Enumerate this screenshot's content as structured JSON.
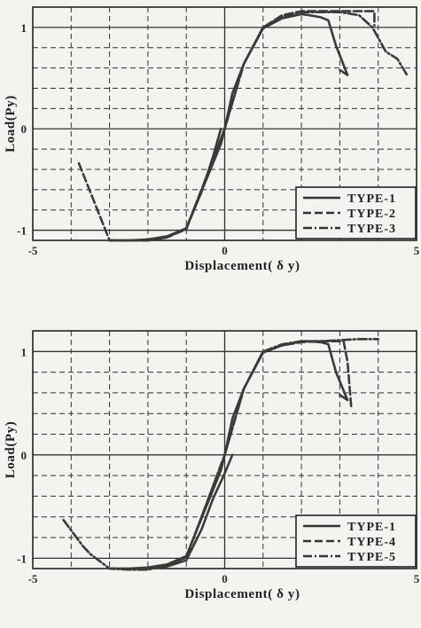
{
  "charts": [
    {
      "type": "line",
      "xlabel": "Displacement( δ y)",
      "ylabel": "Load(Py)",
      "xlim": [
        -5,
        5
      ],
      "ylim": [
        -1.1,
        1.2
      ],
      "xticks": [
        "-5",
        "0",
        "5"
      ],
      "yticks": [
        "1",
        "0",
        "-1"
      ],
      "ytick_values": [
        1,
        0,
        -1
      ],
      "grid": true,
      "legend_position": "bottom-right",
      "series": [
        {
          "name": "TYPE-1",
          "dash": "solid",
          "x": [
            -0.1,
            -0.3,
            -0.6,
            -1.0,
            -1.5,
            -2.0,
            -2.5,
            -3.0,
            -2.5,
            -2.0,
            -1.5,
            -1.0,
            -0.5,
            -0.1,
            0.0,
            0.2,
            0.5,
            1.0,
            1.5,
            2.0,
            2.2,
            2.5,
            2.7,
            2.9,
            3.2,
            3.0
          ],
          "y": [
            0.0,
            -0.27,
            -0.62,
            -0.98,
            -1.06,
            -1.1,
            -1.1,
            -1.1,
            -1.1,
            -1.09,
            -1.06,
            -0.98,
            -0.52,
            -0.15,
            0.0,
            0.35,
            0.64,
            0.99,
            1.09,
            1.13,
            1.12,
            1.1,
            1.07,
            0.82,
            0.53,
            0.58
          ]
        },
        {
          "name": "TYPE-2",
          "dash": "dashed",
          "x": [
            -3.8,
            -3.0,
            -2.5,
            -2.0,
            -1.5,
            -1.0,
            -0.5,
            0.0,
            0.5,
            1.0,
            1.5,
            2.0,
            2.5,
            3.0,
            3.5,
            3.9,
            3.9
          ],
          "y": [
            -0.34,
            -1.1,
            -1.1,
            -1.1,
            -1.07,
            -0.99,
            -0.5,
            0.0,
            0.64,
            1.0,
            1.12,
            1.16,
            1.16,
            1.16,
            1.16,
            1.16,
            1.02
          ]
        },
        {
          "name": "TYPE-3",
          "dash": "dashdot",
          "x": [
            -3.0,
            -2.5,
            -2.0,
            -1.5,
            -1.0,
            -0.5,
            0.0,
            0.5,
            1.0,
            1.5,
            2.0,
            2.5,
            3.0,
            3.5,
            3.85,
            4.2,
            4.5,
            4.75
          ],
          "y": [
            -1.1,
            -1.1,
            -1.1,
            -1.07,
            -0.98,
            -0.5,
            0.0,
            0.64,
            1.0,
            1.11,
            1.15,
            1.15,
            1.15,
            1.12,
            1.0,
            0.76,
            0.69,
            0.53
          ]
        }
      ]
    },
    {
      "type": "line",
      "xlabel": "Displacement( δ y)",
      "ylabel": "Load(Py)",
      "xlim": [
        -5,
        5
      ],
      "ylim": [
        -1.1,
        1.2
      ],
      "xticks": [
        "-5",
        "0",
        "5"
      ],
      "yticks": [
        "1",
        "0",
        "-1"
      ],
      "ytick_values": [
        1,
        0,
        -1
      ],
      "grid": true,
      "legend_position": "bottom-right",
      "series": [
        {
          "name": "TYPE-1",
          "dash": "solid",
          "x": [
            0.2,
            0.0,
            -0.3,
            -0.6,
            -1.0,
            -1.5,
            -2.0,
            -2.5,
            -3.0,
            -2.5,
            -2.0,
            -1.5,
            -1.0,
            -0.5,
            -0.1,
            0.0,
            0.2,
            0.5,
            1.0,
            1.5,
            2.0,
            2.2,
            2.5,
            2.7,
            2.9,
            3.2,
            3.0
          ],
          "y": [
            0.0,
            -0.18,
            -0.42,
            -0.72,
            -1.02,
            -1.08,
            -1.1,
            -1.1,
            -1.1,
            -1.1,
            -1.09,
            -1.06,
            -0.98,
            -0.52,
            -0.15,
            0.0,
            0.35,
            0.64,
            0.99,
            1.06,
            1.1,
            1.1,
            1.09,
            1.07,
            0.8,
            0.53,
            0.58
          ]
        },
        {
          "name": "TYPE-4",
          "dash": "dashed",
          "x": [
            -3.0,
            -2.5,
            -2.0,
            -1.5,
            -1.0,
            -0.5,
            0.0,
            0.5,
            1.0,
            1.5,
            2.0,
            2.5,
            3.0,
            3.1,
            3.2,
            3.3
          ],
          "y": [
            -1.1,
            -1.1,
            -1.1,
            -1.07,
            -0.99,
            -0.5,
            0.0,
            0.64,
            1.0,
            1.06,
            1.09,
            1.1,
            1.1,
            1.1,
            0.9,
            0.45
          ]
        },
        {
          "name": "TYPE-5",
          "dash": "dashdot",
          "x": [
            -4.2,
            -3.7,
            -3.5,
            -3.0,
            -2.5,
            -2.0,
            -1.5,
            -1.0,
            -0.5,
            0.0,
            0.5,
            1.0,
            1.5,
            2.0,
            2.5,
            3.0,
            3.5,
            4.0
          ],
          "y": [
            -0.63,
            -0.88,
            -0.96,
            -1.1,
            -1.11,
            -1.11,
            -1.07,
            -0.99,
            -0.5,
            0.0,
            0.64,
            1.0,
            1.07,
            1.1,
            1.1,
            1.11,
            1.12,
            1.12
          ]
        }
      ]
    }
  ]
}
